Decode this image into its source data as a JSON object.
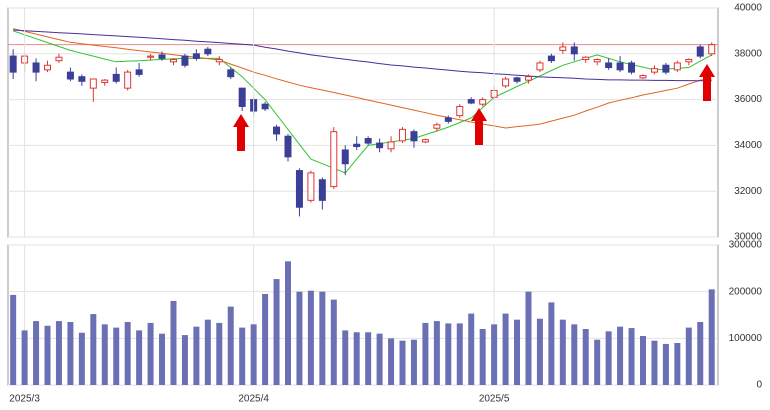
{
  "chart_data": [
    {
      "type": "candlestick",
      "open": [
        37900,
        37600,
        37600,
        37300,
        37700,
        37200,
        37000,
        36500,
        36750,
        37100,
        36500,
        37300,
        37850,
        37950,
        37650,
        37900,
        38000,
        38200,
        37650,
        37300,
        36500,
        36000,
        35800,
        34800,
        34400,
        32900,
        31600,
        32500,
        32200,
        33800,
        34050,
        34300,
        34100,
        33850,
        34200,
        34600,
        34150,
        34750,
        35200,
        35300,
        36000,
        35800,
        36100,
        36600,
        36950,
        36850,
        37300,
        37900,
        38150,
        38300,
        37750,
        37650,
        37600,
        37600,
        37600,
        36950,
        37200,
        37500,
        37300,
        37650,
        38300,
        38000
      ],
      "high": [
        38200,
        38000,
        37800,
        37700,
        38000,
        37400,
        37100,
        36900,
        36900,
        37400,
        37300,
        37600,
        38000,
        38100,
        37800,
        38000,
        38200,
        38300,
        37900,
        37400,
        36500,
        36100,
        35900,
        34900,
        34500,
        33000,
        32900,
        32600,
        34800,
        34000,
        34400,
        34400,
        34300,
        34400,
        34800,
        34700,
        34300,
        35000,
        35300,
        35800,
        36100,
        36100,
        36600,
        37000,
        37000,
        37100,
        37700,
        38000,
        38500,
        38500,
        37900,
        37800,
        37800,
        37900,
        37700,
        37100,
        37500,
        37600,
        37700,
        37800,
        38400,
        38500
      ],
      "low": [
        36900,
        37200,
        36800,
        37200,
        37600,
        36800,
        36600,
        35900,
        36600,
        36700,
        36400,
        37000,
        37700,
        37700,
        37500,
        37400,
        37700,
        37900,
        37500,
        36900,
        35500,
        35300,
        35500,
        34200,
        33300,
        30900,
        31500,
        31200,
        32100,
        32700,
        33800,
        34000,
        33700,
        33700,
        34100,
        33900,
        34100,
        34600,
        34950,
        35200,
        35800,
        35700,
        36000,
        36500,
        36700,
        36700,
        37200,
        37600,
        38000,
        37700,
        37600,
        37500,
        37300,
        37200,
        37100,
        36900,
        37100,
        37100,
        37200,
        37500,
        37800,
        37900
      ],
      "close": [
        37200,
        37900,
        37200,
        37500,
        37850,
        36900,
        36800,
        36900,
        36850,
        36800,
        37200,
        37100,
        37900,
        37800,
        37750,
        37500,
        37800,
        38000,
        37750,
        37000,
        35700,
        35500,
        35600,
        34500,
        33500,
        31300,
        32800,
        31600,
        34600,
        33200,
        33950,
        34100,
        33900,
        34150,
        34700,
        34200,
        34250,
        34900,
        35050,
        35700,
        35850,
        36000,
        36400,
        36900,
        36800,
        37000,
        37600,
        37700,
        38300,
        38000,
        37850,
        37750,
        37400,
        37300,
        37200,
        37050,
        37350,
        37200,
        37600,
        37750,
        37900,
        38400
      ],
      "up_color": "#e03535",
      "down_color": "#3b3f96",
      "series": [
        {
          "color": "#2fc42f",
          "values": [
            39000,
            38830,
            38660,
            38490,
            38320,
            38150,
            38020,
            37900,
            37770,
            37650,
            37680,
            37700,
            37730,
            37750,
            37780,
            37800,
            37800,
            37800,
            37800,
            37400,
            37000,
            36500,
            36000,
            35350,
            34700,
            34050,
            33400,
            33200,
            33000,
            32800,
            33400,
            34000,
            34080,
            34150,
            34230,
            34300,
            34470,
            34630,
            34800,
            35000,
            35200,
            35650,
            36100,
            36330,
            36570,
            36800,
            37030,
            37270,
            37500,
            37650,
            37800,
            37950,
            37800,
            37650,
            37530,
            37420,
            37300,
            37330,
            37370,
            37400,
            37680,
            37950
          ]
        },
        {
          "color": "#e0661e",
          "values": [
            39100,
            38980,
            38860,
            38740,
            38620,
            38500,
            38440,
            38380,
            38320,
            38260,
            38200,
            38140,
            38080,
            38020,
            37960,
            37900,
            37850,
            37790,
            37730,
            37550,
            37380,
            37200,
            37060,
            36910,
            36770,
            36630,
            36520,
            36420,
            36310,
            36200,
            36090,
            35980,
            35870,
            35760,
            35650,
            35540,
            35430,
            35320,
            35220,
            35120,
            35020,
            34930,
            34850,
            34760,
            34820,
            34870,
            34930,
            35060,
            35190,
            35320,
            35500,
            35670,
            35850,
            35970,
            36080,
            36200,
            36300,
            36400,
            36500,
            36680,
            36850,
            36900
          ]
        },
        {
          "color": "#4a2d9e",
          "values": [
            39040,
            39010,
            38980,
            38950,
            38920,
            38900,
            38870,
            38840,
            38810,
            38780,
            38750,
            38720,
            38690,
            38660,
            38620,
            38590,
            38550,
            38520,
            38490,
            38450,
            38420,
            38380,
            38290,
            38210,
            38120,
            38040,
            37950,
            37890,
            37820,
            37760,
            37700,
            37640,
            37570,
            37510,
            37470,
            37420,
            37380,
            37330,
            37290,
            37240,
            37200,
            37170,
            37130,
            37100,
            37060,
            37030,
            36990,
            36970,
            36950,
            36930,
            36900,
            36880,
            36860,
            36860,
            36850,
            36850,
            36840,
            36840,
            36830,
            36830,
            36820,
            36820
          ]
        }
      ],
      "hline": {
        "value": 38400,
        "color": "#e88a8a"
      },
      "ylim": [
        30000,
        40000
      ],
      "yticks": [
        30000,
        32000,
        34000,
        36000,
        38000,
        40000
      ],
      "grid": true
    },
    {
      "type": "bar",
      "categories": [
        null,
        "2025/3",
        null,
        null,
        null,
        null,
        null,
        null,
        null,
        null,
        null,
        null,
        null,
        null,
        null,
        null,
        null,
        null,
        null,
        null,
        null,
        "2025/4",
        null,
        null,
        null,
        null,
        null,
        null,
        null,
        null,
        null,
        null,
        null,
        null,
        null,
        null,
        null,
        null,
        null,
        null,
        null,
        null,
        "2025/5",
        null,
        null,
        null,
        null,
        null,
        null,
        null,
        null,
        null,
        null,
        null,
        null,
        null,
        null,
        null,
        null,
        null,
        null,
        null
      ],
      "values": [
        193000,
        117000,
        137000,
        127000,
        137000,
        135000,
        112000,
        152000,
        130000,
        123000,
        135000,
        117000,
        133000,
        110000,
        180000,
        107000,
        125000,
        140000,
        133000,
        168000,
        123000,
        130000,
        195000,
        227000,
        265000,
        200000,
        202000,
        200000,
        183000,
        117000,
        113000,
        113000,
        110000,
        100000,
        95000,
        97000,
        133000,
        137000,
        132000,
        132000,
        153000,
        120000,
        130000,
        153000,
        140000,
        200000,
        142000,
        177000,
        140000,
        130000,
        120000,
        97000,
        115000,
        125000,
        122000,
        105000,
        95000,
        88000,
        90000,
        123000,
        135000,
        205000
      ],
      "color": "#6b70b4",
      "ylim": [
        0,
        300000
      ],
      "yticks": [
        0,
        100000,
        200000,
        300000
      ],
      "grid": true
    }
  ]
}
